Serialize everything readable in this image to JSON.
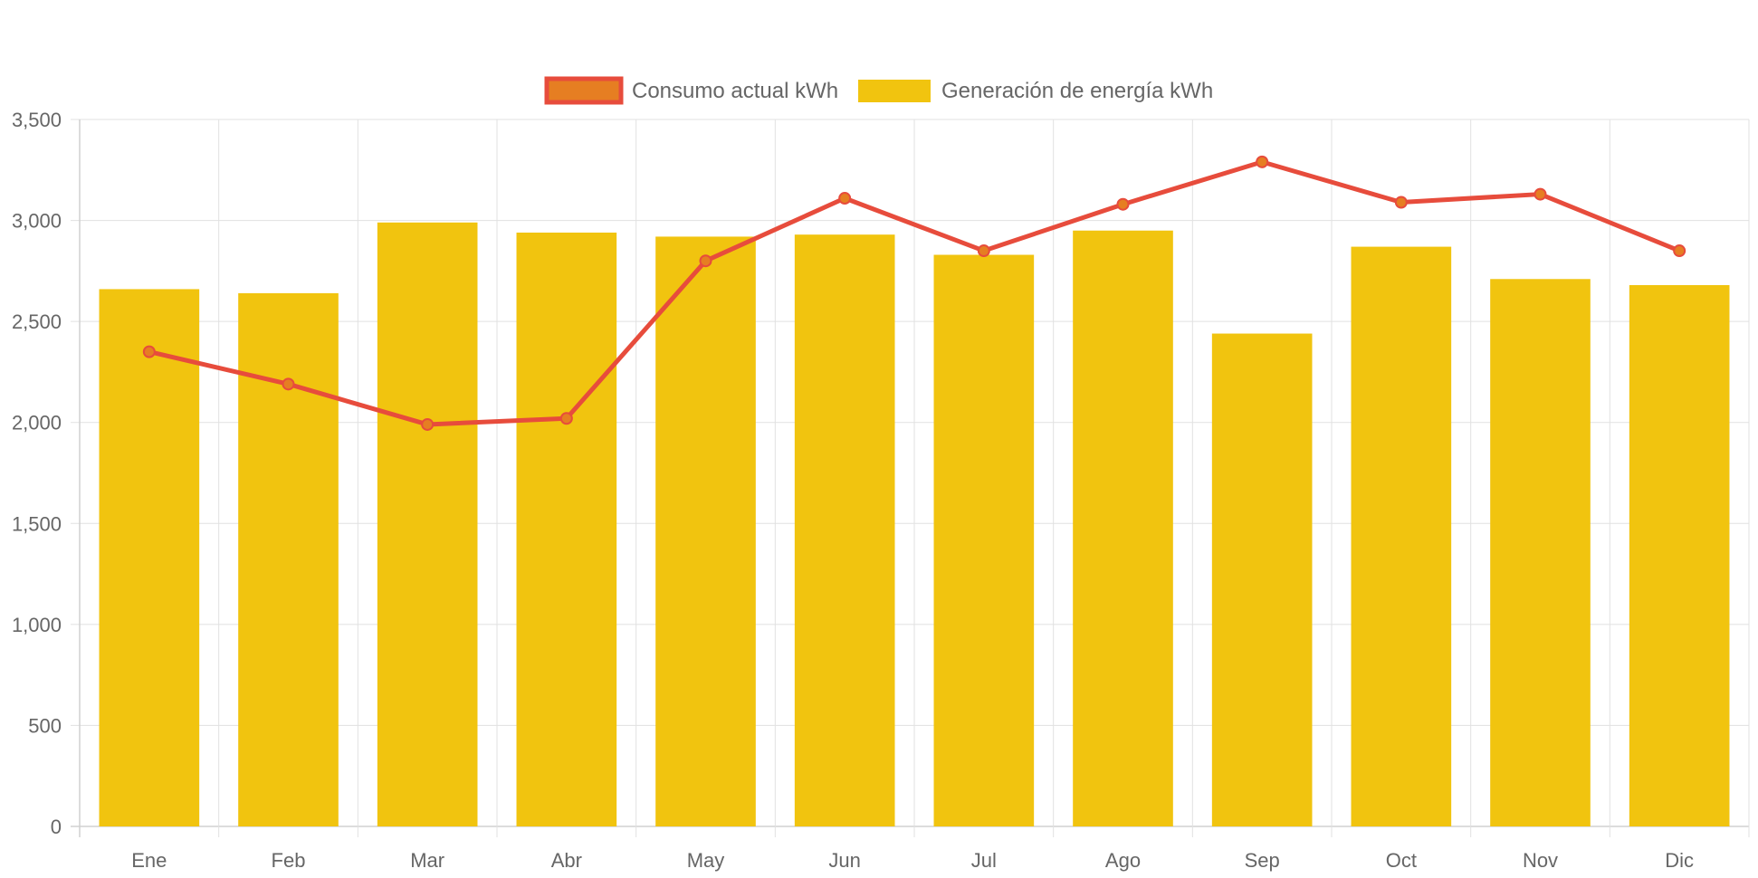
{
  "chart_data": {
    "type": "bar",
    "categories": [
      "Ene",
      "Feb",
      "Mar",
      "Abr",
      "May",
      "Jun",
      "Jul",
      "Ago",
      "Sep",
      "Oct",
      "Nov",
      "Dic"
    ],
    "series": [
      {
        "name": "Consumo actual kWh",
        "type": "line",
        "color": "#e74c3c",
        "point_color": "#e67e22",
        "values": [
          2350,
          2190,
          1990,
          2020,
          2800,
          3110,
          2850,
          3080,
          3290,
          3090,
          3130,
          2850
        ]
      },
      {
        "name": "Generación de energía kWh",
        "type": "bar",
        "color": "#f1c40f",
        "values": [
          2660,
          2640,
          2990,
          2940,
          2920,
          2930,
          2830,
          2950,
          2440,
          2870,
          2710,
          2680
        ]
      }
    ],
    "yticks": [
      "0",
      "500",
      "1,000",
      "1,500",
      "2,000",
      "2,500",
      "3,000",
      "3,500"
    ],
    "ylim": [
      0,
      3500
    ],
    "grid": true,
    "legend_position": "top-center"
  }
}
